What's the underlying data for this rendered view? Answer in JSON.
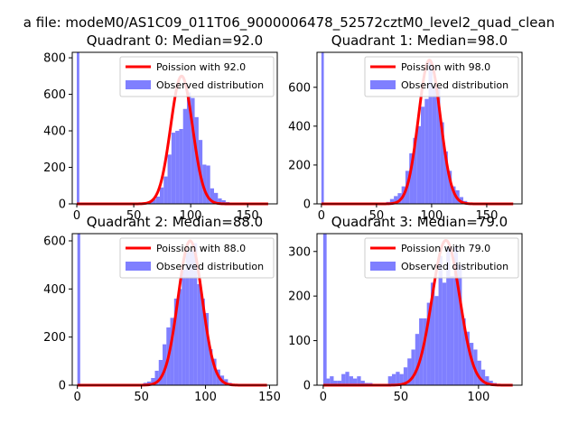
{
  "figure": {
    "suptitle": "a file: modeM0/AS1C09_011T06_9000006478_52572cztM0_level2_quad_clean"
  },
  "chart_data": [
    {
      "type": "bar",
      "title": "Quadrant 0: Median=92.0",
      "xlim": [
        -4,
        176
      ],
      "ylim": [
        0,
        830
      ],
      "xticks": [
        0,
        50,
        100,
        150
      ],
      "yticks": [
        0,
        200,
        400,
        600,
        800
      ],
      "legend": [
        "Poission with 92.0",
        "Observed distribution"
      ],
      "poisson_mean": 92.0,
      "poisson_peak": 700,
      "poisson_sigma": 9.6,
      "poisson_range": [
        0,
        168
      ],
      "bin_width": 3.4,
      "hist": [
        [
          0,
          830
        ],
        [
          61,
          5
        ],
        [
          64.4,
          10
        ],
        [
          67.8,
          25
        ],
        [
          71.2,
          40
        ],
        [
          74.6,
          90
        ],
        [
          78,
          150
        ],
        [
          81.4,
          270
        ],
        [
          84.8,
          390
        ],
        [
          88.2,
          400
        ],
        [
          91.6,
          410
        ],
        [
          95,
          520
        ],
        [
          98.4,
          610
        ],
        [
          101.8,
          580
        ],
        [
          105.2,
          475
        ],
        [
          108.6,
          350
        ],
        [
          112,
          215
        ],
        [
          115.4,
          210
        ],
        [
          118.8,
          85
        ],
        [
          122.2,
          60
        ],
        [
          125.6,
          30
        ],
        [
          129,
          20
        ],
        [
          132.4,
          10
        ],
        [
          135.8,
          5
        ]
      ],
      "legend_position": "upper right"
    },
    {
      "type": "bar",
      "title": "Quadrant 1: Median=98.0",
      "xlim": [
        -4,
        182
      ],
      "ylim": [
        0,
        780
      ],
      "xticks": [
        0,
        50,
        100,
        150
      ],
      "yticks": [
        0,
        200,
        400,
        600
      ],
      "legend": [
        "Poission with 98.0",
        "Observed distribution"
      ],
      "poisson_mean": 98.0,
      "poisson_peak": 740,
      "poisson_sigma": 9.9,
      "poisson_range": [
        0,
        174
      ],
      "bin_width": 3.5,
      "hist": [
        [
          0,
          780
        ],
        [
          57,
          5
        ],
        [
          60.5,
          10
        ],
        [
          64,
          25
        ],
        [
          67.5,
          40
        ],
        [
          71,
          55
        ],
        [
          74.5,
          90
        ],
        [
          78,
          170
        ],
        [
          81.5,
          260
        ],
        [
          85,
          340
        ],
        [
          88.5,
          400
        ],
        [
          92,
          500
        ],
        [
          95.5,
          540
        ],
        [
          99,
          730
        ],
        [
          102.5,
          610
        ],
        [
          106,
          600
        ],
        [
          109.5,
          420
        ],
        [
          113,
          270
        ],
        [
          116.5,
          170
        ],
        [
          120,
          90
        ],
        [
          123.5,
          70
        ],
        [
          127,
          35
        ],
        [
          130.5,
          15
        ],
        [
          134,
          5
        ]
      ],
      "legend_position": "upper right"
    },
    {
      "type": "bar",
      "title": "Quadrant 2: Median=88.0",
      "xlim": [
        -4,
        156
      ],
      "ylim": [
        0,
        630
      ],
      "xticks": [
        0,
        50,
        100,
        150
      ],
      "yticks": [
        0,
        200,
        400,
        600
      ],
      "legend": [
        "Poission with 88.0",
        "Observed distribution"
      ],
      "poisson_mean": 88.0,
      "poisson_peak": 600,
      "poisson_sigma": 9.4,
      "poisson_range": [
        0,
        148
      ],
      "bin_width": 3.0,
      "hist": [
        [
          0,
          630
        ],
        [
          47,
          5
        ],
        [
          50,
          5
        ],
        [
          53,
          10
        ],
        [
          56,
          15
        ],
        [
          59,
          30
        ],
        [
          62,
          60
        ],
        [
          65,
          105
        ],
        [
          68,
          170
        ],
        [
          71,
          240
        ],
        [
          74,
          280
        ],
        [
          77,
          360
        ],
        [
          80,
          400
        ],
        [
          83,
          480
        ],
        [
          86,
          560
        ],
        [
          89,
          560
        ],
        [
          92,
          590
        ],
        [
          95,
          420
        ],
        [
          98,
          360
        ],
        [
          101,
          300
        ],
        [
          104,
          150
        ],
        [
          107,
          110
        ],
        [
          110,
          65
        ],
        [
          113,
          40
        ],
        [
          116,
          25
        ],
        [
          119,
          10
        ],
        [
          122,
          5
        ]
      ],
      "legend_position": "upper right"
    },
    {
      "type": "bar",
      "title": "Quadrant 3: Median=79.0",
      "xlim": [
        -4,
        128
      ],
      "ylim": [
        0,
        340
      ],
      "xticks": [
        0,
        50,
        100
      ],
      "yticks": [
        0,
        100,
        200,
        300
      ],
      "legend": [
        "Poission with 79.0",
        "Observed distribution"
      ],
      "poisson_mean": 79.0,
      "poisson_peak": 325,
      "poisson_sigma": 8.9,
      "poisson_range": [
        0,
        122
      ],
      "bin_width": 2.5,
      "hist": [
        [
          0,
          340
        ],
        [
          3,
          15
        ],
        [
          5.5,
          20
        ],
        [
          8,
          10
        ],
        [
          10.5,
          10
        ],
        [
          13,
          25
        ],
        [
          15.5,
          30
        ],
        [
          18,
          20
        ],
        [
          20.5,
          15
        ],
        [
          23,
          20
        ],
        [
          25.5,
          10
        ],
        [
          28,
          5
        ],
        [
          30.5,
          5
        ],
        [
          43,
          20
        ],
        [
          45.5,
          25
        ],
        [
          48,
          30
        ],
        [
          50.5,
          25
        ],
        [
          53,
          40
        ],
        [
          55.5,
          60
        ],
        [
          58,
          80
        ],
        [
          60.5,
          115
        ],
        [
          63,
          150
        ],
        [
          65.5,
          150
        ],
        [
          68,
          185
        ],
        [
          70.5,
          230
        ],
        [
          73,
          200
        ],
        [
          75.5,
          290
        ],
        [
          78,
          230
        ],
        [
          80.5,
          310
        ],
        [
          83,
          245
        ],
        [
          85.5,
          310
        ],
        [
          88,
          270
        ],
        [
          90.5,
          150
        ],
        [
          93,
          120
        ],
        [
          95.5,
          95
        ],
        [
          98,
          80
        ],
        [
          100.5,
          55
        ],
        [
          103,
          35
        ],
        [
          105.5,
          20
        ],
        [
          108,
          10
        ],
        [
          110.5,
          5
        ]
      ],
      "legend_position": "upper right"
    }
  ]
}
